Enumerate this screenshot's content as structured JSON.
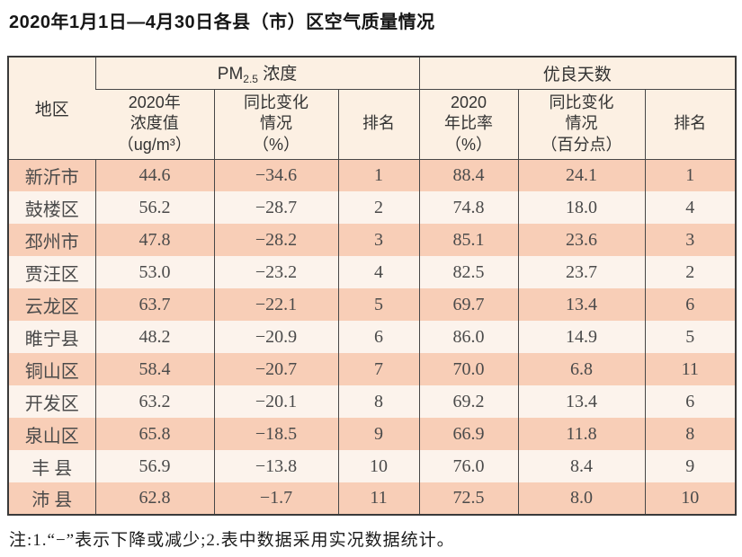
{
  "page": {
    "title": "2020年1月1日—4月30日各县（市）区空气质量情况",
    "footnote": "注:1.“−”表示下降或减少;2.表中数据采用实况数据统计。"
  },
  "colors": {
    "row_odd": "#f8ceb7",
    "row_even": "#fcf3ec",
    "header_bg": "#fcf0e3",
    "grid_line": "#474747"
  },
  "table": {
    "headers": {
      "region": "地区",
      "pm_group": {
        "prefix": "PM",
        "sub": "2.5",
        "suffix": " 浓度"
      },
      "good_group": "优良天数",
      "pm_value": "2020年\n浓度值\n（ug/m³）",
      "pm_change": "同比变化\n情况\n（%）",
      "pm_rank": "排名",
      "good_ratio": "2020\n年比率\n（%）",
      "good_change": "同比变化\n情况\n（百分点）",
      "good_rank": "排名"
    },
    "rows": [
      {
        "region": "新沂市",
        "pm_value": "44.6",
        "pm_change": "−34.6",
        "pm_rank": "1",
        "good_ratio": "88.4",
        "good_change": "24.1",
        "good_rank": "1"
      },
      {
        "region": "鼓楼区",
        "pm_value": "56.2",
        "pm_change": "−28.7",
        "pm_rank": "2",
        "good_ratio": "74.8",
        "good_change": "18.0",
        "good_rank": "4"
      },
      {
        "region": "邳州市",
        "pm_value": "47.8",
        "pm_change": "−28.2",
        "pm_rank": "3",
        "good_ratio": "85.1",
        "good_change": "23.6",
        "good_rank": "3"
      },
      {
        "region": "贾汪区",
        "pm_value": "53.0",
        "pm_change": "−23.2",
        "pm_rank": "4",
        "good_ratio": "82.5",
        "good_change": "23.7",
        "good_rank": "2"
      },
      {
        "region": "云龙区",
        "pm_value": "63.7",
        "pm_change": "−22.1",
        "pm_rank": "5",
        "good_ratio": "69.7",
        "good_change": "13.4",
        "good_rank": "6"
      },
      {
        "region": "睢宁县",
        "pm_value": "48.2",
        "pm_change": "−20.9",
        "pm_rank": "6",
        "good_ratio": "86.0",
        "good_change": "14.9",
        "good_rank": "5"
      },
      {
        "region": "铜山区",
        "pm_value": "58.4",
        "pm_change": "−20.7",
        "pm_rank": "7",
        "good_ratio": "70.0",
        "good_change": "6.8",
        "good_rank": "11"
      },
      {
        "region": "开发区",
        "pm_value": "63.2",
        "pm_change": "−20.1",
        "pm_rank": "8",
        "good_ratio": "69.2",
        "good_change": "13.4",
        "good_rank": "6"
      },
      {
        "region": "泉山区",
        "pm_value": "65.8",
        "pm_change": "−18.5",
        "pm_rank": "9",
        "good_ratio": "66.9",
        "good_change": "11.8",
        "good_rank": "8"
      },
      {
        "region": "丰 县",
        "pm_value": "56.9",
        "pm_change": "−13.8",
        "pm_rank": "10",
        "good_ratio": "76.0",
        "good_change": "8.4",
        "good_rank": "9"
      },
      {
        "region": "沛 县",
        "pm_value": "62.8",
        "pm_change": "−1.7",
        "pm_rank": "11",
        "good_ratio": "72.5",
        "good_change": "8.0",
        "good_rank": "10"
      }
    ]
  }
}
